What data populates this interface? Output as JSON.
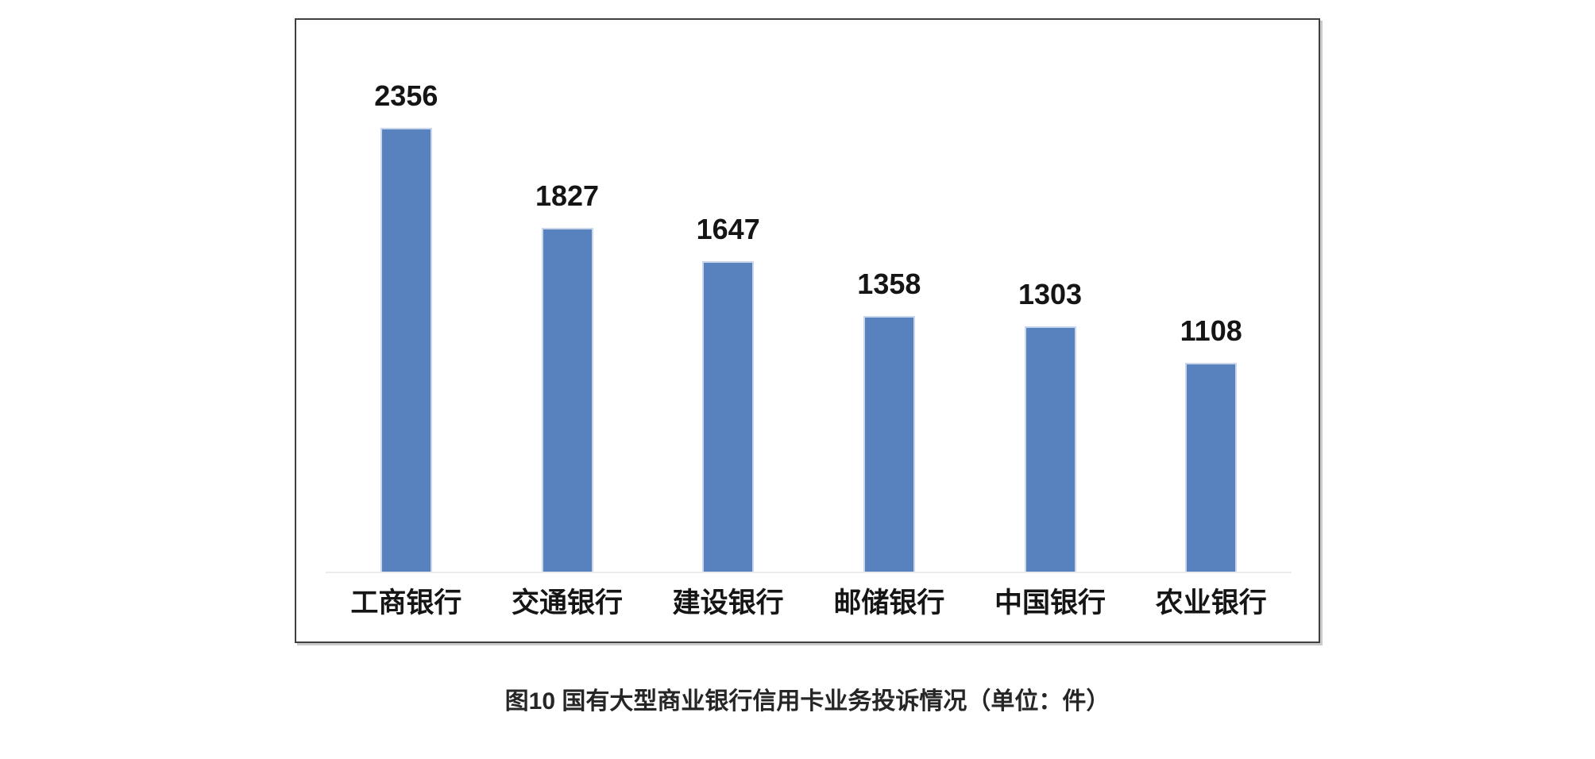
{
  "chart_data": {
    "type": "bar",
    "title": "",
    "xlabel": "",
    "ylabel": "",
    "categories": [
      "工商银行",
      "交通银行",
      "建设银行",
      "邮储银行",
      "中国银行",
      "农业银行"
    ],
    "values": [
      2356,
      1827,
      1647,
      1358,
      1303,
      1108
    ],
    "value_labels_shown": true,
    "ylim": [
      0,
      2500
    ],
    "grid": false,
    "legend": false,
    "bar_color": "#5782BD",
    "bar_edge_color": "#c9d7ec",
    "value_label_color": "#151515",
    "axis_label_color": "#151515",
    "axis_line_color": "#ececec",
    "frame_border_color": "#3f3f3f"
  },
  "caption": {
    "text": "图10 国有大型商业银行信用卡业务投诉情况（单位：件）"
  }
}
